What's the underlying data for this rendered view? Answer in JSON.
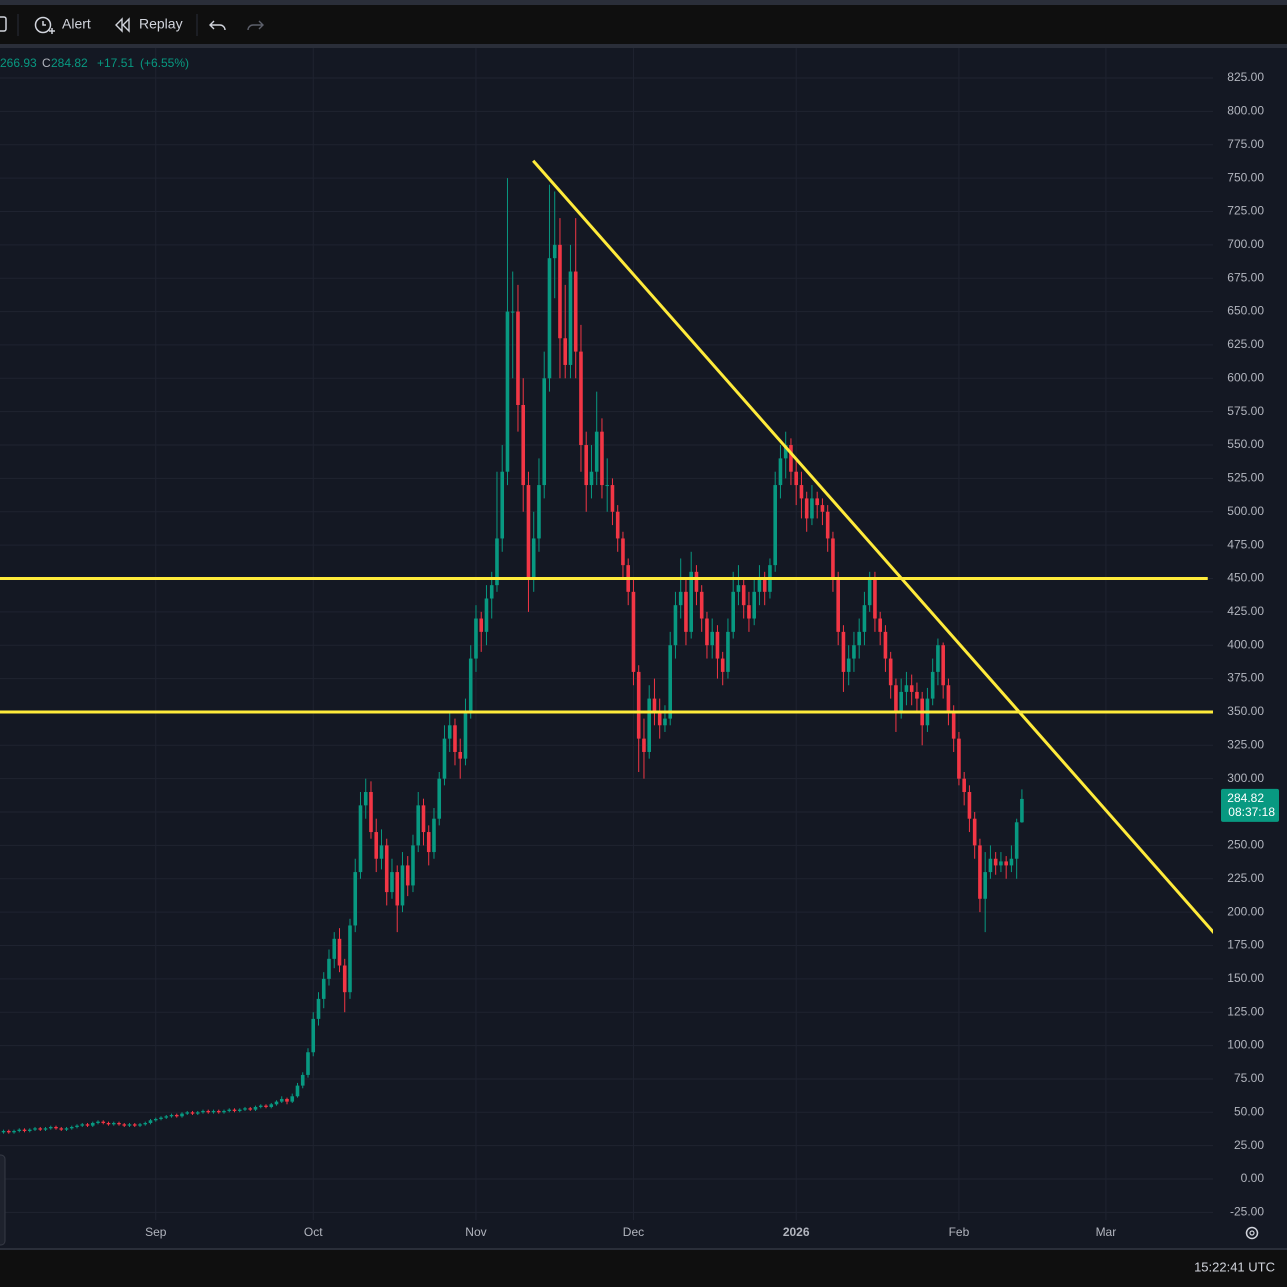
{
  "toolbar": {
    "alert": "Alert",
    "replay": "Replay"
  },
  "legend": {
    "value": "266.93",
    "close_label": "C",
    "close": "284.82",
    "change": "+17.51",
    "change_pct": "(+6.55%)"
  },
  "status_bar": {
    "clock": "15:22:41 UTC"
  },
  "chart_data": {
    "type": "candlestick",
    "up_color": "#089981",
    "down_color": "#f23645",
    "grid": true,
    "xlim": [
      0.33,
      231.4
    ],
    "xticks": [
      {
        "value": 30,
        "label": "Sep"
      },
      {
        "value": 60,
        "label": "Oct"
      },
      {
        "value": 91,
        "label": "Nov"
      },
      {
        "value": 121,
        "label": "Dec"
      },
      {
        "value": 152,
        "label": "2026"
      },
      {
        "value": 183,
        "label": "Feb"
      },
      {
        "value": 211,
        "label": "Mar"
      }
    ],
    "ylim": [
      -30.7,
      847.5
    ],
    "yticks": [
      {
        "value": -25,
        "label": "-25.00"
      },
      {
        "value": 0,
        "label": "0.00"
      },
      {
        "value": 25,
        "label": "25.00"
      },
      {
        "value": 50,
        "label": "50.00"
      },
      {
        "value": 75,
        "label": "75.00"
      },
      {
        "value": 100,
        "label": "100.00"
      },
      {
        "value": 125,
        "label": "125.00"
      },
      {
        "value": 150,
        "label": "150.00"
      },
      {
        "value": 175,
        "label": "175.00"
      },
      {
        "value": 200,
        "label": "200.00"
      },
      {
        "value": 225,
        "label": "225.00"
      },
      {
        "value": 250,
        "label": "250.00"
      },
      {
        "value": 275,
        "label": "275.00"
      },
      {
        "value": 300,
        "label": "300.00"
      },
      {
        "value": 325,
        "label": "325.00"
      },
      {
        "value": 350,
        "label": "350.00"
      },
      {
        "value": 375,
        "label": "375.00"
      },
      {
        "value": 400,
        "label": "400.00"
      },
      {
        "value": 425,
        "label": "425.00"
      },
      {
        "value": 450,
        "label": "450.00"
      },
      {
        "value": 475,
        "label": "475.00"
      },
      {
        "value": 500,
        "label": "500.00"
      },
      {
        "value": 525,
        "label": "525.00"
      },
      {
        "value": 550,
        "label": "550.00"
      },
      {
        "value": 575,
        "label": "575.00"
      },
      {
        "value": 600,
        "label": "600.00"
      },
      {
        "value": 625,
        "label": "625.00"
      },
      {
        "value": 650,
        "label": "650.00"
      },
      {
        "value": 675,
        "label": "675.00"
      },
      {
        "value": 700,
        "label": "700.00"
      },
      {
        "value": 725,
        "label": "725.00"
      },
      {
        "value": 750,
        "label": "750.00"
      },
      {
        "value": 775,
        "label": "775.00"
      },
      {
        "value": 800,
        "label": "800.00"
      },
      {
        "value": 825,
        "label": "825.00"
      }
    ],
    "last_price": 284.82,
    "countdown": "08:37:18",
    "drawing_color": "#ffeb3b",
    "drawings": [
      {
        "type": "hline",
        "value": 450,
        "x": [
          0.33,
          230.4
        ]
      },
      {
        "type": "hline",
        "value": 350,
        "x": [
          0.33,
          232.3
        ]
      },
      {
        "type": "trendline",
        "x": [
          101.9,
          232.3
        ],
        "y": [
          763,
          181.3
        ]
      }
    ],
    "candles": [
      [
        34,
        36,
        33,
        35
      ],
      [
        35,
        37,
        34,
        36
      ],
      [
        36,
        37,
        34,
        35
      ],
      [
        35,
        37,
        34,
        36
      ],
      [
        36,
        38,
        35,
        37
      ],
      [
        37,
        38,
        35,
        36
      ],
      [
        36,
        38,
        35,
        37
      ],
      [
        37,
        39,
        36,
        38
      ],
      [
        38,
        39,
        36,
        37
      ],
      [
        37,
        39,
        36,
        38
      ],
      [
        38,
        40,
        37,
        39
      ],
      [
        39,
        40,
        37,
        38
      ],
      [
        38,
        39,
        36,
        37
      ],
      [
        37,
        39,
        36,
        38
      ],
      [
        38,
        40,
        37,
        39
      ],
      [
        39,
        41,
        38,
        40
      ],
      [
        40,
        42,
        39,
        41
      ],
      [
        41,
        42,
        39,
        40
      ],
      [
        40,
        43,
        39,
        42
      ],
      [
        42,
        44,
        41,
        43
      ],
      [
        43,
        44,
        41,
        42
      ],
      [
        42,
        43,
        40,
        41
      ],
      [
        41,
        43,
        40,
        42
      ],
      [
        42,
        43,
        40,
        41
      ],
      [
        41,
        42,
        39,
        40
      ],
      [
        40,
        42,
        39,
        41
      ],
      [
        41,
        42,
        39,
        40
      ],
      [
        40,
        42,
        39,
        41
      ],
      [
        41,
        43,
        40,
        42
      ],
      [
        42,
        45,
        41,
        44
      ],
      [
        44,
        46,
        43,
        45
      ],
      [
        45,
        47,
        44,
        46
      ],
      [
        46,
        48,
        45,
        47
      ],
      [
        47,
        49,
        46,
        48
      ],
      [
        48,
        49,
        46,
        47
      ],
      [
        47,
        50,
        46,
        49
      ],
      [
        49,
        51,
        48,
        50
      ],
      [
        50,
        51,
        48,
        49
      ],
      [
        49,
        51,
        48,
        50
      ],
      [
        50,
        52,
        49,
        51
      ],
      [
        51,
        52,
        49,
        50
      ],
      [
        50,
        52,
        49,
        51
      ],
      [
        51,
        52,
        49,
        50
      ],
      [
        50,
        52,
        49,
        51
      ],
      [
        51,
        53,
        50,
        52
      ],
      [
        52,
        53,
        50,
        51
      ],
      [
        51,
        53,
        50,
        52
      ],
      [
        52,
        54,
        51,
        53
      ],
      [
        53,
        54,
        51,
        52
      ],
      [
        52,
        55,
        51,
        54
      ],
      [
        54,
        56,
        53,
        55
      ],
      [
        55,
        56,
        53,
        54
      ],
      [
        54,
        57,
        53,
        56
      ],
      [
        56,
        59,
        55,
        58
      ],
      [
        58,
        62,
        57,
        60
      ],
      [
        60,
        61,
        56,
        58
      ],
      [
        58,
        64,
        57,
        62
      ],
      [
        62,
        72,
        61,
        70
      ],
      [
        70,
        80,
        68,
        78
      ],
      [
        78,
        98,
        76,
        95
      ],
      [
        95,
        125,
        92,
        120
      ],
      [
        120,
        140,
        115,
        135
      ],
      [
        135,
        155,
        128,
        150
      ],
      [
        150,
        172,
        145,
        165
      ],
      [
        165,
        185,
        158,
        180
      ],
      [
        180,
        188,
        155,
        160
      ],
      [
        160,
        165,
        125,
        140
      ],
      [
        140,
        195,
        135,
        190
      ],
      [
        190,
        240,
        185,
        230
      ],
      [
        230,
        290,
        225,
        280
      ],
      [
        280,
        300,
        270,
        290
      ],
      [
        290,
        298,
        255,
        260
      ],
      [
        260,
        270,
        230,
        240
      ],
      [
        240,
        262,
        232,
        250
      ],
      [
        250,
        255,
        205,
        215
      ],
      [
        215,
        240,
        210,
        230
      ],
      [
        230,
        235,
        185,
        205
      ],
      [
        205,
        245,
        200,
        235
      ],
      [
        235,
        242,
        212,
        220
      ],
      [
        220,
        258,
        215,
        250
      ],
      [
        250,
        290,
        245,
        280
      ],
      [
        280,
        285,
        250,
        260
      ],
      [
        260,
        265,
        235,
        245
      ],
      [
        245,
        278,
        240,
        270
      ],
      [
        270,
        305,
        265,
        300
      ],
      [
        300,
        340,
        295,
        330
      ],
      [
        330,
        350,
        320,
        340
      ],
      [
        340,
        345,
        310,
        320
      ],
      [
        320,
        330,
        300,
        315
      ],
      [
        315,
        360,
        310,
        350
      ],
      [
        350,
        400,
        345,
        390
      ],
      [
        390,
        430,
        380,
        420
      ],
      [
        420,
        425,
        395,
        410
      ],
      [
        410,
        445,
        400,
        435
      ],
      [
        435,
        455,
        420,
        445
      ],
      [
        445,
        530,
        440,
        480
      ],
      [
        480,
        550,
        470,
        530
      ],
      [
        530,
        750,
        520,
        650
      ],
      [
        650,
        680,
        600,
        650
      ],
      [
        650,
        670,
        560,
        580
      ],
      [
        580,
        600,
        500,
        520
      ],
      [
        520,
        530,
        425,
        450
      ],
      [
        450,
        500,
        440,
        480
      ],
      [
        480,
        540,
        470,
        520
      ],
      [
        520,
        620,
        510,
        600
      ],
      [
        600,
        745,
        590,
        690
      ],
      [
        690,
        740,
        660,
        700
      ],
      [
        700,
        720,
        600,
        630
      ],
      [
        630,
        670,
        600,
        610
      ],
      [
        610,
        700,
        600,
        680
      ],
      [
        680,
        720,
        600,
        620
      ],
      [
        620,
        640,
        530,
        550
      ],
      [
        550,
        560,
        500,
        520
      ],
      [
        520,
        550,
        510,
        530
      ],
      [
        530,
        590,
        520,
        560
      ],
      [
        560,
        570,
        510,
        520
      ],
      [
        520,
        540,
        500,
        520
      ],
      [
        520,
        525,
        490,
        500
      ],
      [
        500,
        505,
        470,
        480
      ],
      [
        480,
        485,
        450,
        460
      ],
      [
        460,
        465,
        430,
        440
      ],
      [
        440,
        450,
        370,
        380
      ],
      [
        380,
        385,
        305,
        330
      ],
      [
        330,
        345,
        300,
        320
      ],
      [
        320,
        370,
        315,
        360
      ],
      [
        360,
        375,
        340,
        350
      ],
      [
        350,
        360,
        330,
        340
      ],
      [
        340,
        355,
        335,
        345
      ],
      [
        345,
        410,
        340,
        400
      ],
      [
        400,
        440,
        390,
        430
      ],
      [
        430,
        465,
        420,
        440
      ],
      [
        440,
        450,
        400,
        410
      ],
      [
        410,
        470,
        405,
        455
      ],
      [
        455,
        460,
        430,
        440
      ],
      [
        440,
        445,
        410,
        420
      ],
      [
        420,
        425,
        390,
        400
      ],
      [
        400,
        420,
        390,
        410
      ],
      [
        410,
        415,
        375,
        390
      ],
      [
        390,
        395,
        370,
        380
      ],
      [
        380,
        420,
        375,
        410
      ],
      [
        410,
        455,
        405,
        440
      ],
      [
        440,
        460,
        430,
        445
      ],
      [
        445,
        450,
        420,
        430
      ],
      [
        430,
        440,
        410,
        420
      ],
      [
        420,
        450,
        415,
        440
      ],
      [
        440,
        460,
        430,
        450
      ],
      [
        450,
        455,
        430,
        440
      ],
      [
        440,
        465,
        435,
        460
      ],
      [
        460,
        530,
        455,
        520
      ],
      [
        520,
        550,
        510,
        540
      ],
      [
        540,
        560,
        525,
        550
      ],
      [
        550,
        555,
        520,
        530
      ],
      [
        530,
        540,
        505,
        520
      ],
      [
        520,
        530,
        495,
        510
      ],
      [
        510,
        515,
        485,
        495
      ],
      [
        495,
        520,
        490,
        510
      ],
      [
        510,
        515,
        495,
        505
      ],
      [
        505,
        510,
        490,
        500
      ],
      [
        500,
        505,
        470,
        480
      ],
      [
        480,
        485,
        440,
        450
      ],
      [
        450,
        455,
        400,
        410
      ],
      [
        410,
        415,
        365,
        380
      ],
      [
        380,
        400,
        370,
        390
      ],
      [
        390,
        410,
        380,
        400
      ],
      [
        400,
        420,
        390,
        410
      ],
      [
        410,
        440,
        400,
        430
      ],
      [
        430,
        455,
        425,
        450
      ],
      [
        450,
        455,
        410,
        420
      ],
      [
        420,
        425,
        400,
        410
      ],
      [
        410,
        415,
        380,
        390
      ],
      [
        390,
        395,
        360,
        370
      ],
      [
        370,
        375,
        335,
        350
      ],
      [
        350,
        375,
        345,
        365
      ],
      [
        365,
        380,
        355,
        370
      ],
      [
        370,
        378,
        355,
        365
      ],
      [
        365,
        372,
        350,
        360
      ],
      [
        360,
        365,
        325,
        340
      ],
      [
        340,
        368,
        335,
        360
      ],
      [
        360,
        390,
        355,
        380
      ],
      [
        380,
        405,
        370,
        400
      ],
      [
        400,
        402,
        360,
        370
      ],
      [
        370,
        375,
        340,
        350
      ],
      [
        350,
        355,
        320,
        330
      ],
      [
        330,
        335,
        295,
        300
      ],
      [
        300,
        305,
        280,
        290
      ],
      [
        290,
        295,
        260,
        270
      ],
      [
        270,
        275,
        240,
        250
      ],
      [
        250,
        255,
        200,
        210
      ],
      [
        210,
        245,
        185,
        230
      ],
      [
        230,
        250,
        225,
        240
      ],
      [
        240,
        245,
        228,
        235
      ],
      [
        235,
        245,
        230,
        238
      ],
      [
        238,
        242,
        225,
        235
      ],
      [
        235,
        250,
        230,
        240
      ],
      [
        240,
        270,
        225,
        267.31
      ],
      [
        267.31,
        292,
        266.93,
        284.82
      ]
    ]
  }
}
